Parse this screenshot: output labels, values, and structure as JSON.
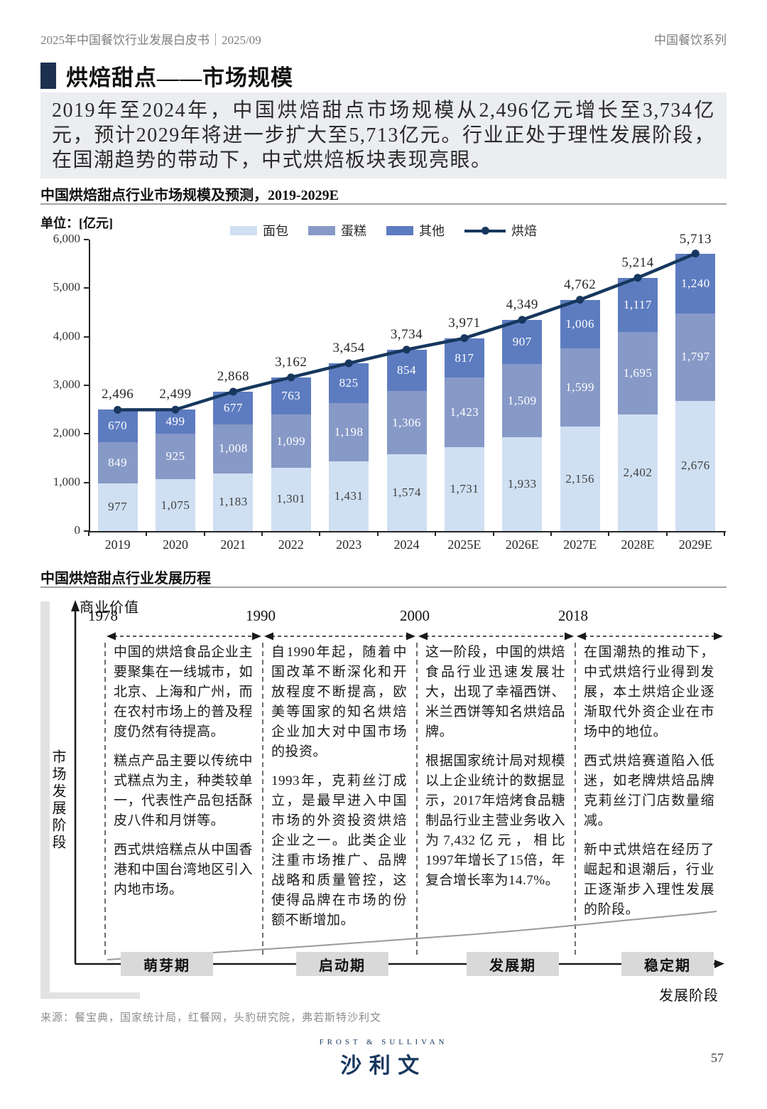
{
  "header": {
    "left": "2025年中国餐饮行业发展白皮书｜2025/09",
    "right": "中国餐饮系列"
  },
  "title": {
    "text": "烘焙甜点——市场规模",
    "block_color": "#1c3050"
  },
  "summary": {
    "text": "2019年至2024年，中国烘焙甜点市场规模从2,496亿元增长至3,734亿元，预计2029年将进一步扩大至5,713亿元。行业正处于理性发展阶段，在国潮趋势的带动下，中式烘焙板块表现亮眼。"
  },
  "chart": {
    "title": "中国烘焙甜点行业市场规模及预测，2019-2029E",
    "unit_label": "单位：[亿元]"
  },
  "chart_data": {
    "type": "bar",
    "subtype": "stacked-bar-with-line",
    "title": "中国烘焙甜点行业市场规模及预测，2019-2029E",
    "ylabel": "亿元",
    "categories": [
      "2019",
      "2020",
      "2021",
      "2022",
      "2023",
      "2024",
      "2025E",
      "2026E",
      "2027E",
      "2028E",
      "2029E"
    ],
    "series": [
      {
        "name": "面包",
        "color": "#d0e0f3",
        "values": [
          977,
          1075,
          1183,
          1301,
          1431,
          1574,
          1731,
          1933,
          2156,
          2402,
          2676
        ]
      },
      {
        "name": "蛋糕",
        "color": "#8799c7",
        "values": [
          849,
          925,
          1008,
          1099,
          1198,
          1306,
          1423,
          1509,
          1599,
          1695,
          1797
        ]
      },
      {
        "name": "其他",
        "color": "#5d7cc0",
        "values": [
          670,
          499,
          677,
          763,
          825,
          854,
          817,
          907,
          1006,
          1117,
          1240
        ]
      }
    ],
    "line_series": {
      "name": "烘焙",
      "color": "#17375e",
      "values": [
        2496,
        2499,
        2868,
        3162,
        3454,
        3734,
        3971,
        4349,
        4762,
        5214,
        5713
      ]
    },
    "ylim": [
      0,
      6000
    ],
    "ytick_step": 1000,
    "grid": false,
    "legend_position": "top"
  },
  "history": {
    "title": "中国烘焙甜点行业发展历程",
    "y_axis_label": "商业价值",
    "side_label": "市场发展阶段",
    "x_axis_label": "发展阶段",
    "periods": [
      {
        "year": "1978",
        "paragraphs": [
          "中国的烘焙食品企业主要聚集在一线城市，如北京、上海和广州，而在农村市场上的普及程度仍然有待提高。",
          "糕点产品主要以传统中式糕点为主，种类较单一，代表性产品包括酥皮八件和月饼等。",
          "西式烘焙糕点从中国香港和中国台湾地区引入内地市场。"
        ]
      },
      {
        "year": "1990",
        "paragraphs": [
          "自1990年起，随着中国改革不断深化和开放程度不断提高，欧美等国家的知名烘焙企业加大对中国市场的投资。",
          "1993年，克莉丝汀成立，是最早进入中国市场的外资投资烘焙企业之一。此类企业注重市场推广、品牌战略和质量管控，这使得品牌在市场的份额不断增加。"
        ]
      },
      {
        "year": "2000",
        "paragraphs": [
          "这一阶段，中国的烘焙食品行业迅速发展壮大，出现了幸福西饼、米兰西饼等知名烘焙品牌。",
          "根据国家统计局对规模以上企业统计的数据显示，2017年焙烤食品糖制品行业主营业务收入为7,432亿元，相比1997年增长了15倍，年复合增长率为14.7%。"
        ]
      },
      {
        "year": "2018",
        "paragraphs": [
          "在国潮热的推动下，中式烘焙行业得到发展，本土烘焙企业逐渐取代外资企业在市场中的地位。",
          "西式烘焙赛道陷入低迷，如老牌烘焙品牌克莉丝汀门店数量缩减。",
          "新中式烘焙在经历了崛起和退潮后，行业正逐渐步入理性发展的阶段。"
        ]
      }
    ],
    "stages": [
      "萌芽期",
      "启动期",
      "发展期",
      "稳定期"
    ]
  },
  "source": {
    "text": "来源：餐宝典，国家统计局，红餐网，头豹研究院，弗若斯特沙利文"
  },
  "footer": {
    "logo_en": "FROST & SULLIVAN",
    "logo_cn": "沙利文",
    "page_number": "57"
  }
}
